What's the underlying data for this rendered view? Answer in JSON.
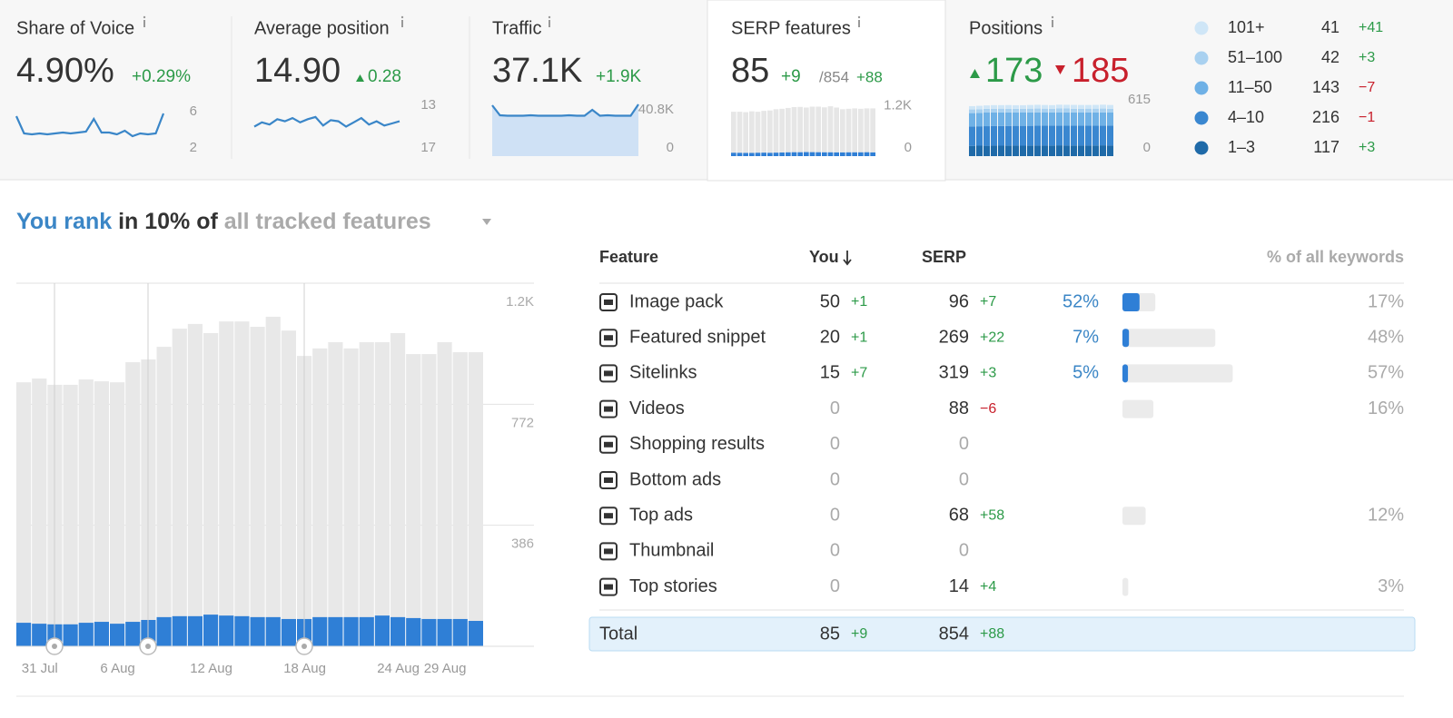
{
  "header_cards": [
    {
      "title": "Share of Voice",
      "value": "4.90%",
      "change": "+0.29%",
      "spark": {
        "type": "line",
        "color": "#3a86c8",
        "values": [
          5.5,
          3.6,
          3.5,
          3.6,
          3.5,
          3.6,
          3.7,
          3.6,
          3.7,
          3.8,
          5.2,
          3.7,
          3.7,
          3.5,
          3.9,
          3.3,
          3.6,
          3.5,
          3.6,
          5.8
        ],
        "ylim": [
          2,
          6
        ],
        "yticks": [
          6,
          2
        ]
      }
    },
    {
      "title": "Average position",
      "value": "14.90",
      "change": "0.28",
      "spark": {
        "type": "line",
        "color": "#3a86c8",
        "values": [
          15.0,
          14.6,
          14.8,
          14.3,
          14.5,
          14.2,
          14.6,
          14.3,
          14.1,
          14.9,
          14.4,
          14.5,
          15.0,
          14.6,
          14.2,
          14.8,
          14.5,
          14.9,
          14.7,
          14.5
        ],
        "ylim": [
          17,
          13
        ],
        "yticks": [
          13,
          17
        ]
      }
    },
    {
      "title": "Traffic",
      "value": "37.1K",
      "change": "+1.9K",
      "spark": {
        "type": "area",
        "color": "#3a86c8",
        "fill": "#cfe1f5",
        "values": [
          44800,
          36000,
          35600,
          35600,
          35600,
          36000,
          35600,
          35600,
          35600,
          35600,
          36000,
          35600,
          35600,
          40800,
          35600,
          36000,
          35600,
          35600,
          35600,
          45600
        ],
        "ylim": [
          0,
          48000
        ],
        "yticks": [
          {
            "value": 40800,
            "label": "40.8K"
          },
          0
        ]
      }
    },
    {
      "title": "SERP features",
      "value": "85",
      "change": "+9",
      "total": "/854",
      "total_change": "+88",
      "spark": {
        "type": "bar",
        "ylim": [
          0,
          1300
        ],
        "yticks": [
          {
            "value": 1200,
            "label": "1.2K"
          },
          0
        ],
        "series": [
          {
            "color": "#e6e6e6",
            "values": [
              1060,
              1060,
              1050,
              1070,
              1060,
              1080,
              1090,
              1120,
              1130,
              1150,
              1170,
              1175,
              1160,
              1180,
              1180,
              1165,
              1190,
              1160,
              1120,
              1130,
              1140,
              1130,
              1140,
              1140
            ]
          },
          {
            "color": "#2f7fd6",
            "values": [
              80,
              78,
              76,
              76,
              80,
              82,
              78,
              82,
              86,
              90,
              92,
              92,
              96,
              94,
              92,
              90,
              90,
              88,
              88,
              90,
              90,
              90,
              92,
              88
            ]
          }
        ]
      }
    },
    {
      "title": "Positions",
      "up": "173",
      "down": "185",
      "spark": {
        "type": "stacked_bar",
        "ylim": [
          0,
          615
        ],
        "yticks": [
          615,
          0
        ],
        "series": [
          {
            "name": "1–3",
            "count": "117",
            "change": "+3",
            "color": "#1f6aa8",
            "values": [
              112,
              114,
              113,
              115,
              114,
              116,
              115,
              114,
              116,
              117,
              115,
              116,
              118,
              117,
              116,
              115,
              117,
              116,
              118,
              117
            ]
          },
          {
            "name": "4–10",
            "count": "216",
            "change": "−1",
            "color": "#3a87d0",
            "values": [
              210,
              212,
              214,
              213,
              215,
              214,
              216,
              217,
              215,
              216,
              218,
              217,
              216,
              215,
              217,
              218,
              216,
              217,
              216,
              216
            ]
          },
          {
            "name": "11–50",
            "count": "143",
            "change": "−7",
            "color": "#6fb1e6",
            "values": [
              148,
              147,
              149,
              150,
              148,
              147,
              146,
              148,
              147,
              145,
              146,
              144,
              145,
              146,
              144,
              143,
              145,
              144,
              143,
              143
            ]
          },
          {
            "name": "51–100",
            "count": "42",
            "change": "+3",
            "color": "#a9d1f0",
            "values": [
              40,
              39,
              41,
              40,
              42,
              41,
              40,
              39,
              41,
              42,
              40,
              41,
              42,
              43,
              41,
              42,
              41,
              42,
              43,
              42
            ]
          },
          {
            "name": "101+",
            "count": "41",
            "change": "+41",
            "color": "#cfe6f7",
            "values": [
              36,
              38,
              37,
              39,
              38,
              40,
              39,
              38,
              40,
              41,
              40,
              39,
              41,
              40,
              42,
              41,
              40,
              41,
              42,
              41
            ]
          }
        ]
      }
    }
  ],
  "headline": {
    "lead": "You rank",
    "middle": "in 10% of",
    "filter": "all tracked features"
  },
  "chart": {
    "type": "bar",
    "ylim": [
      0,
      1158
    ],
    "yticks": [
      {
        "value": 1158,
        "label": "1.2K"
      },
      772,
      386
    ],
    "grid": true,
    "categories": [
      null,
      "31 Jul",
      null,
      null,
      null,
      null,
      "6 Aug",
      null,
      null,
      null,
      null,
      null,
      "12 Aug",
      null,
      null,
      null,
      null,
      null,
      "18 Aug",
      null,
      null,
      null,
      null,
      null,
      "24 Aug",
      null,
      null,
      "29 Aug",
      null,
      null
    ],
    "series": [
      {
        "color": "#e8e8e8",
        "values": [
          842,
          854,
          834,
          834,
          851,
          845,
          842,
          906,
          915,
          955,
          1013,
          1028,
          999,
          1036,
          1036,
          1019,
          1051,
          1007,
          926,
          950,
          970,
          950,
          970,
          970,
          999,
          932,
          932,
          970,
          938,
          938
        ]
      },
      {
        "color": "#2f7fd6",
        "values": [
          75,
          72,
          70,
          70,
          75,
          78,
          72,
          78,
          84,
          93,
          96,
          96,
          101,
          98,
          96,
          93,
          93,
          87,
          87,
          93,
          93,
          93,
          93,
          98,
          93,
          90,
          87,
          87,
          87,
          81
        ]
      }
    ]
  },
  "table": {
    "columns": [
      "Feature",
      "You",
      "SERP",
      "% of all keywords"
    ],
    "rows": [
      {
        "name": "Image pack",
        "you": 50,
        "you_change": "+1",
        "serp": 96,
        "serp_change": "+7",
        "share": {
          "value": 52,
          "label": "52%"
        },
        "keywords": {
          "value": 17,
          "label": "17%"
        }
      },
      {
        "name": "Featured snippet",
        "you": 20,
        "you_change": "+1",
        "serp": 269,
        "serp_change": "+22",
        "share": {
          "value": 7,
          "label": "7%"
        },
        "keywords": {
          "value": 48,
          "label": "48%"
        }
      },
      {
        "name": "Sitelinks",
        "you": 15,
        "you_change": "+7",
        "serp": 319,
        "serp_change": "+3",
        "share": {
          "value": 5,
          "label": "5%"
        },
        "keywords": {
          "value": 57,
          "label": "57%"
        }
      },
      {
        "name": "Videos",
        "you": 0,
        "you_change": null,
        "serp": 88,
        "serp_change": "−6",
        "share": null,
        "keywords": {
          "value": 16,
          "label": "16%"
        }
      },
      {
        "name": "Shopping results",
        "you": 0,
        "you_change": null,
        "serp": 0,
        "serp_change": null,
        "share": null,
        "keywords": null
      },
      {
        "name": "Bottom ads",
        "you": 0,
        "you_change": null,
        "serp": 0,
        "serp_change": null,
        "share": null,
        "keywords": null
      },
      {
        "name": "Top ads",
        "you": 0,
        "you_change": null,
        "serp": 68,
        "serp_change": "+58",
        "share": null,
        "keywords": {
          "value": 12,
          "label": "12%"
        }
      },
      {
        "name": "Thumbnail",
        "you": 0,
        "you_change": null,
        "serp": 0,
        "serp_change": null,
        "share": null,
        "keywords": null
      },
      {
        "name": "Top stories",
        "you": 0,
        "you_change": null,
        "serp": 14,
        "serp_change": "+4",
        "share": null,
        "keywords": {
          "value": 3,
          "label": "3%"
        }
      }
    ],
    "total": {
      "name": "Total",
      "you": 85,
      "you_change": "+9",
      "serp": 854,
      "serp_change": "+88"
    }
  }
}
